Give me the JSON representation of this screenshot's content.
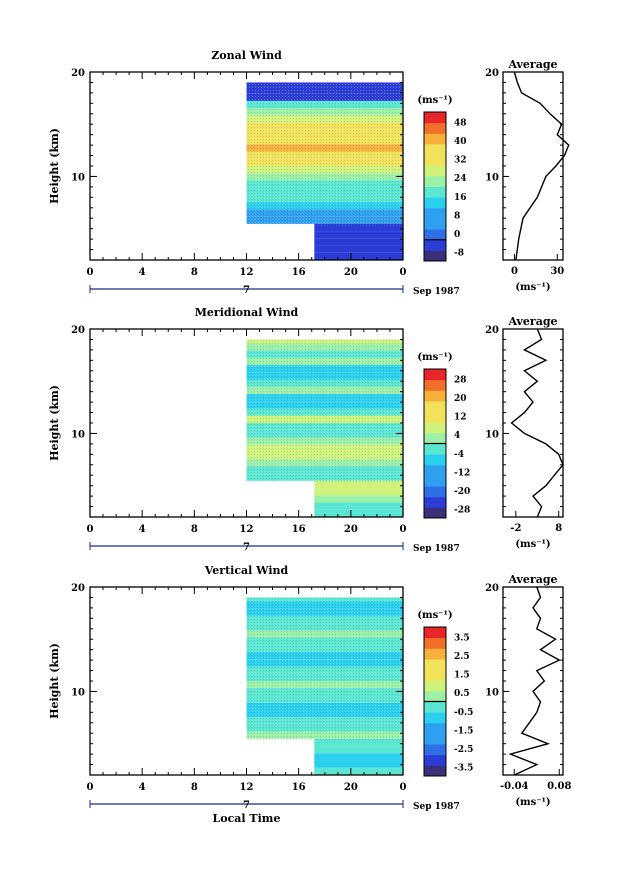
{
  "figure": {
    "panels": [
      {
        "title": "Zonal Wind",
        "ylabel": "Height (km)",
        "yticks": [
          "20",
          "10"
        ],
        "xticks": [
          "0",
          "4",
          "8",
          "12",
          "16",
          "20",
          "0"
        ],
        "date_marker": "7",
        "date_label": "Sep 1987",
        "colorbar_unit": "(ms⁻¹)",
        "colorbar_ticks": [
          "48",
          "40",
          "32",
          "24",
          "16",
          "8",
          "0",
          "-8"
        ],
        "avg_title": "Average",
        "avg_yticks": [
          "20",
          "10"
        ],
        "avg_xticks": [
          "0",
          "30"
        ],
        "avg_xlabel": "(ms⁻¹)"
      },
      {
        "title": "Meridional Wind",
        "ylabel": "Height (km)",
        "yticks": [
          "20",
          "10"
        ],
        "xticks": [
          "0",
          "4",
          "8",
          "12",
          "16",
          "20",
          "0"
        ],
        "date_marker": "7",
        "date_label": "Sep 1987",
        "colorbar_unit": "(ms⁻¹)",
        "colorbar_ticks": [
          "28",
          "20",
          "12",
          "4",
          "-4",
          "-12",
          "-20",
          "-28"
        ],
        "avg_title": "Average",
        "avg_yticks": [
          "20",
          "10"
        ],
        "avg_xticks": [
          "-2",
          "8"
        ],
        "avg_xlabel": "(ms⁻¹)"
      },
      {
        "title": "Vertical Wind",
        "ylabel": "Height (km)",
        "yticks": [
          "20",
          "10"
        ],
        "xticks": [
          "0",
          "4",
          "8",
          "12",
          "16",
          "20",
          "0"
        ],
        "date_marker": "7",
        "date_label": "Sep 1987",
        "colorbar_unit": "(ms⁻¹)",
        "colorbar_ticks": [
          "3.5",
          "2.5",
          "1.5",
          "0.5",
          "-0.5",
          "-1.5",
          "-2.5",
          "-3.5"
        ],
        "avg_title": "Average",
        "avg_yticks": [
          "20",
          "10"
        ],
        "avg_xticks": [
          "-0.04",
          "0.08"
        ],
        "avg_xlabel": "(ms⁻¹)"
      }
    ],
    "xlabel": "Local Time"
  },
  "chart_data": [
    {
      "type": "heatmap",
      "title": "Zonal Wind",
      "ylabel": "Height (km)",
      "xlabel": "Local Time",
      "xlim": [
        0,
        24
      ],
      "ylim": [
        2,
        20
      ],
      "data_x_start": 12,
      "colorbar": {
        "min": -8,
        "max": 48,
        "step": 4
      },
      "profile": [
        [
          2,
          1
        ],
        [
          4,
          3
        ],
        [
          6,
          6
        ],
        [
          8,
          16
        ],
        [
          10,
          22
        ],
        [
          11,
          29
        ],
        [
          12,
          35
        ],
        [
          13,
          38
        ],
        [
          14,
          30
        ],
        [
          15,
          33
        ],
        [
          16,
          25
        ],
        [
          17,
          18
        ],
        [
          18,
          5
        ],
        [
          19,
          2
        ],
        [
          20,
          0
        ]
      ],
      "profile_xlim": [
        -8,
        34
      ]
    },
    {
      "type": "heatmap",
      "title": "Meridional Wind",
      "ylabel": "Height (km)",
      "xlabel": "Local Time",
      "xlim": [
        0,
        24
      ],
      "ylim": [
        2,
        20
      ],
      "data_x_start": 12,
      "colorbar": {
        "min": -28,
        "max": 28,
        "step": 4
      },
      "profile": [
        [
          2,
          3
        ],
        [
          3,
          4
        ],
        [
          4,
          2
        ],
        [
          5,
          5
        ],
        [
          6,
          7
        ],
        [
          7,
          9
        ],
        [
          8,
          8
        ],
        [
          9,
          5
        ],
        [
          10,
          0
        ],
        [
          11,
          -3
        ],
        [
          12,
          0
        ],
        [
          13,
          2
        ],
        [
          14,
          0
        ],
        [
          15,
          3
        ],
        [
          16,
          0
        ],
        [
          17,
          5
        ],
        [
          18,
          0
        ],
        [
          19,
          4
        ],
        [
          20,
          3
        ]
      ],
      "profile_xlim": [
        -5,
        9
      ]
    },
    {
      "type": "heatmap",
      "title": "Vertical Wind",
      "ylabel": "Height (km)",
      "xlabel": "Local Time",
      "xlim": [
        0,
        24
      ],
      "ylim": [
        2,
        20
      ],
      "data_x_start": 12,
      "colorbar": {
        "min": -3.5,
        "max": 3.5,
        "step": 0.5
      },
      "profile": [
        [
          2,
          -0.04
        ],
        [
          3,
          0.02
        ],
        [
          4,
          -0.05
        ],
        [
          5,
          0.05
        ],
        [
          6,
          -0.02
        ],
        [
          7,
          0.0
        ],
        [
          8,
          0.02
        ],
        [
          9,
          0.03
        ],
        [
          10,
          0.01
        ],
        [
          11,
          0.04
        ],
        [
          12,
          0.02
        ],
        [
          13,
          0.08
        ],
        [
          14,
          0.03
        ],
        [
          15,
          0.07
        ],
        [
          16,
          0.02
        ],
        [
          17,
          0.03
        ],
        [
          18,
          0.01
        ],
        [
          19,
          0.03
        ],
        [
          20,
          0.02
        ]
      ],
      "profile_xlim": [
        -0.07,
        0.09
      ]
    }
  ]
}
